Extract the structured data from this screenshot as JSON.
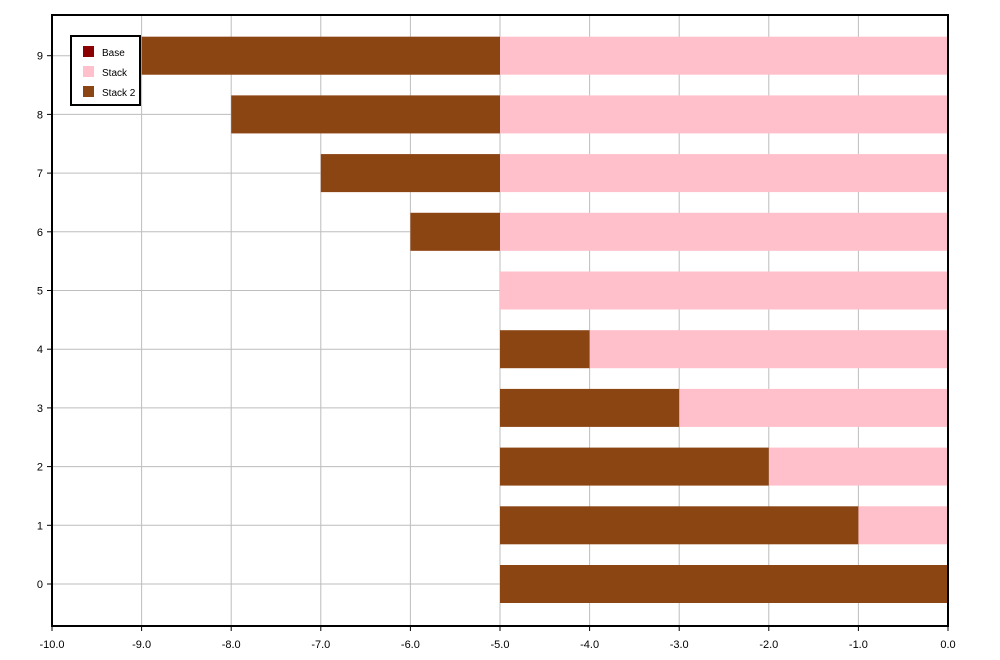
{
  "chart_data": {
    "type": "bar",
    "orientation": "horizontal",
    "stacked": true,
    "title": "",
    "xlabel": "",
    "ylabel": "",
    "categories": [
      "0",
      "1",
      "2",
      "3",
      "4",
      "5",
      "6",
      "7",
      "8",
      "9"
    ],
    "xlim": [
      -10.0,
      0.0
    ],
    "x_ticks": [
      "-10.0",
      "-9.0",
      "-8.0",
      "-7.0",
      "-6.0",
      "-5.0",
      "-4.0",
      "-3.0",
      "-2.0",
      "-1.0",
      "0.0"
    ],
    "y_ticks": [
      "0",
      "1",
      "2",
      "3",
      "4",
      "5",
      "6",
      "7",
      "8",
      "9"
    ],
    "grid": true,
    "legend_position": "top-left",
    "series": [
      {
        "name": "Base",
        "color": "#8b0000",
        "start": [
          0,
          0,
          0,
          0,
          0,
          0,
          0,
          0,
          0,
          0
        ],
        "end": [
          0,
          0,
          0,
          0,
          0,
          0,
          0,
          0,
          0,
          0
        ]
      },
      {
        "name": "Stack",
        "color": "#ffc0cb",
        "start": [
          0,
          -1,
          -2,
          -3,
          -4,
          -5,
          -6,
          -7,
          -8,
          -9
        ],
        "end": [
          0,
          0,
          0,
          0,
          0,
          0,
          0,
          0,
          0,
          0
        ]
      },
      {
        "name": "Stack 2",
        "color": "#8b4513",
        "start": [
          -5,
          -5,
          -5,
          -5,
          -5,
          -5,
          -5,
          -5,
          -5,
          -5
        ],
        "end": [
          0,
          -1,
          -2,
          -3,
          -4,
          -5,
          -6,
          -7,
          -8,
          -9
        ]
      }
    ]
  }
}
